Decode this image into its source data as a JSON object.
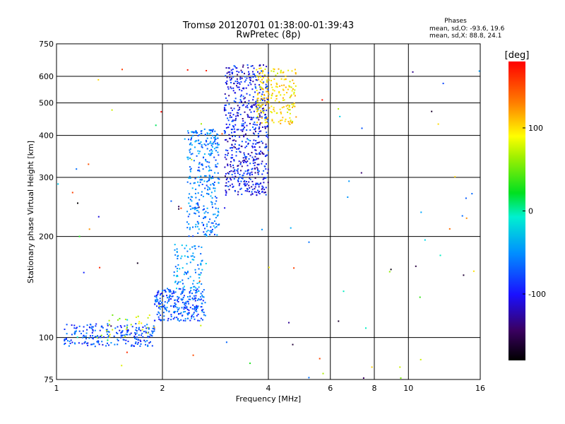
{
  "chart_data": {
    "type": "scatter",
    "title": "Tromsø 20120701 01:38:00-01:39:43",
    "subtitle": "RwPretec (8p)",
    "xlabel": "Frequency [MHz]",
    "ylabel": "Stationary phase Virtual Height [km]",
    "xscale": "log",
    "yscale": "log",
    "xlim": [
      1,
      16
    ],
    "ylim": [
      75,
      750
    ],
    "x_ticks": [
      1,
      2,
      4,
      6,
      8,
      10,
      16
    ],
    "x_tick_labels": [
      "1",
      "2",
      "4",
      "6",
      "8",
      "10",
      "16"
    ],
    "y_ticks": [
      75,
      100,
      200,
      300,
      400,
      500,
      600,
      750
    ],
    "y_tick_labels": [
      "75",
      "100",
      "200",
      "300",
      "400",
      "500",
      "600",
      "750"
    ],
    "grid": true,
    "phase_stats": {
      "header": "Phases",
      "line_o": "mean, sd,O: -93.6, 19.6",
      "line_x": "mean, sd,X: 88.8, 24.1"
    },
    "colorbar": {
      "label": "[deg]",
      "range": [
        -180,
        180
      ],
      "ticks": [
        100,
        0,
        -100
      ],
      "tick_labels": [
        "100",
        "0",
        "-100"
      ]
    },
    "clusters": [
      {
        "name": "E-trace low",
        "x_range": [
          1.05,
          1.9
        ],
        "y_range": [
          94,
          110
        ],
        "color_deg": -95,
        "count": 220
      },
      {
        "name": "E-trace upper",
        "x_range": [
          1.3,
          1.9
        ],
        "y_range": [
          100,
          120
        ],
        "color_deg": 60,
        "count": 25
      },
      {
        "name": "F1 base",
        "x_range": [
          1.9,
          2.65
        ],
        "y_range": [
          112,
          140
        ],
        "color_deg": -90,
        "count": 260
      },
      {
        "name": "F1 rise",
        "x_range": [
          2.15,
          2.6
        ],
        "y_range": [
          140,
          190
        ],
        "color_deg": -60,
        "count": 90
      },
      {
        "name": "F1 cusp",
        "x_range": [
          2.35,
          2.9
        ],
        "y_range": [
          200,
          420
        ],
        "color_deg": -75,
        "count": 330
      },
      {
        "name": "F2 O-trace",
        "x_range": [
          3.0,
          4.0
        ],
        "y_range": [
          265,
          650
        ],
        "color_deg": -115,
        "count": 620
      },
      {
        "name": "F2 X-trace",
        "x_range": [
          3.7,
          4.8
        ],
        "y_range": [
          430,
          640
        ],
        "color_deg": 95,
        "count": 200
      },
      {
        "name": "Scattered noise",
        "x_range": [
          1.0,
          16.0
        ],
        "y_range": [
          75,
          650
        ],
        "color_deg": 0,
        "count": 90
      }
    ]
  }
}
